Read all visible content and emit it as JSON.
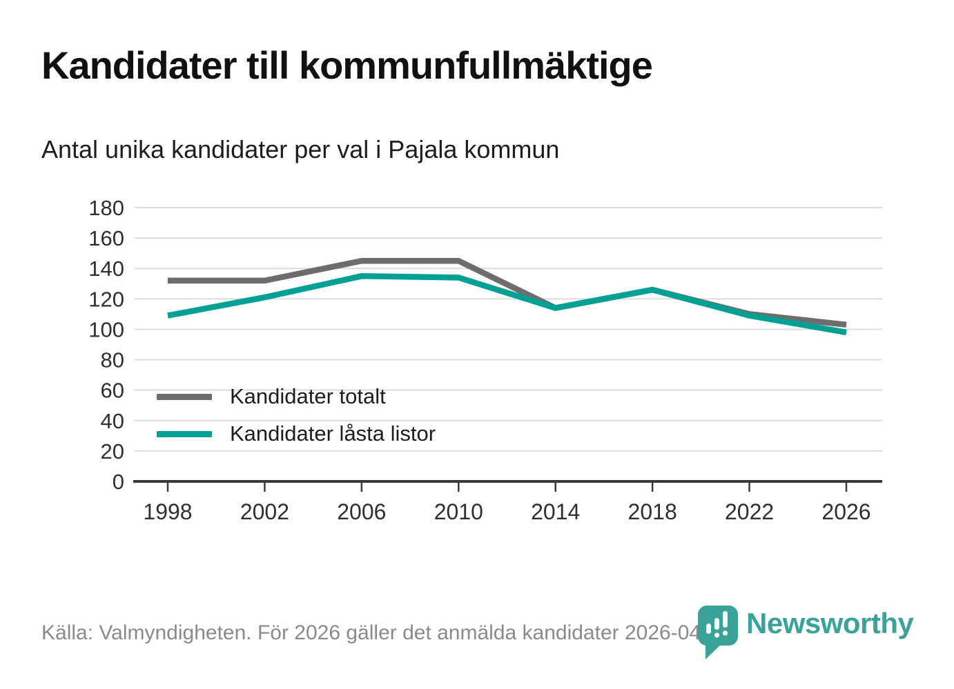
{
  "title": "Kandidater till kommunfullmäktige",
  "subtitle": "Antal unika kandidater per val i Pajala kommun",
  "footer": {
    "source_text": "Källa: Valmyndigheten. För 2026 gäller det anmälda kandidater 2026-04-10."
  },
  "logo": {
    "wordmark": "Newsworthy",
    "icon": "newsworthy-speech-bubble-barchart-icon",
    "color": "#3ba29a"
  },
  "colors": {
    "series_total": "#6d6d6d",
    "series_locked": "#00a094",
    "gridline": "#dcdcdc",
    "axis": "#3a3a3a",
    "tick_text": "#2f2f2f",
    "title_text": "#111111",
    "footer_text": "#8a8a8a"
  },
  "chart_data": {
    "type": "line",
    "title": "Antal unika kandidater per val i Pajala kommun",
    "x": [
      1998,
      2002,
      2006,
      2010,
      2014,
      2018,
      2022,
      2026
    ],
    "series": [
      {
        "name": "Kandidater totalt",
        "color": "#6d6d6d",
        "values": [
          132,
          132,
          145,
          145,
          114,
          126,
          110,
          103
        ]
      },
      {
        "name": "Kandidater låsta listor",
        "color": "#00a094",
        "values": [
          109,
          121,
          135,
          134,
          114,
          126,
          109,
          98
        ]
      }
    ],
    "ylim": [
      0,
      180
    ],
    "ytick_step": 20,
    "xlabel": "",
    "ylabel": "",
    "grid": "horizontal",
    "legend_position": "inside-bottom-left"
  }
}
